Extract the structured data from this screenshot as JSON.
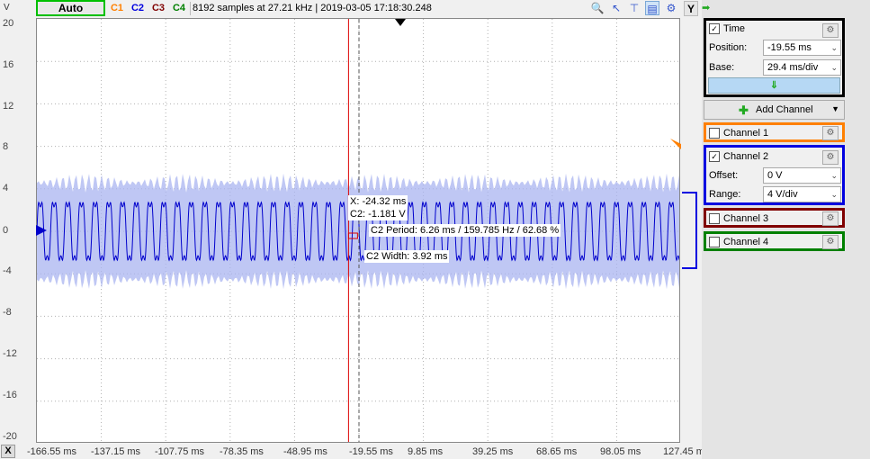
{
  "toolbar": {
    "unit": "V",
    "auto_label": "Auto",
    "channels": [
      {
        "label": "C1",
        "color": "#ff8000"
      },
      {
        "label": "C2",
        "color": "#0000e0"
      },
      {
        "label": "C3",
        "color": "#800000"
      },
      {
        "label": "C4",
        "color": "#008000"
      }
    ],
    "status": "8192 samples at 27.21 kHz | 2019-03-05 17:18:30.248",
    "y_button": "Y",
    "arrow_icon": "arrow-right-icon"
  },
  "plot": {
    "y_labels": [
      "20",
      "16",
      "12",
      "8",
      "4",
      "0",
      "-4",
      "-8",
      "-12",
      "-16",
      "-20"
    ],
    "x_labels": [
      "-166.55 ms",
      "-137.15 ms",
      "-107.75 ms",
      "-78.35 ms",
      "-48.95 ms",
      "-19.55 ms",
      "9.85 ms",
      "39.25 ms",
      "68.65 ms",
      "98.05 ms",
      "127.45 ms"
    ],
    "x_button": "X",
    "cursor_x": "X: -24.32 ms",
    "cursor_c2": "C2: -1.181 V",
    "c2_period": "C2 Period: 6.26 ms / 159.785 Hz / 62.68 %",
    "c2_width": "C2 Width: 3.92 ms",
    "signal": {
      "channel": "C2",
      "amplitude_v": 3.6,
      "period_ms": 6.26,
      "color": "#0000cc",
      "envelope_color": "#aab4f0"
    }
  },
  "panel": {
    "time": {
      "label": "Time",
      "position_label": "Position:",
      "position_value": "-19.55 ms",
      "base_label": "Base:",
      "base_value": "29.4 ms/div"
    },
    "add_channel": "Add Channel",
    "channel1": {
      "label": "Channel 1",
      "color": "#ff8000"
    },
    "channel2": {
      "label": "Channel 2",
      "color": "#0000e0",
      "offset_label": "Offset:",
      "offset_value": "0 V",
      "range_label": "Range:",
      "range_value": "4 V/div"
    },
    "channel3": {
      "label": "Channel 3",
      "color": "#800000"
    },
    "channel4": {
      "label": "Channel 4",
      "color": "#008000"
    }
  }
}
